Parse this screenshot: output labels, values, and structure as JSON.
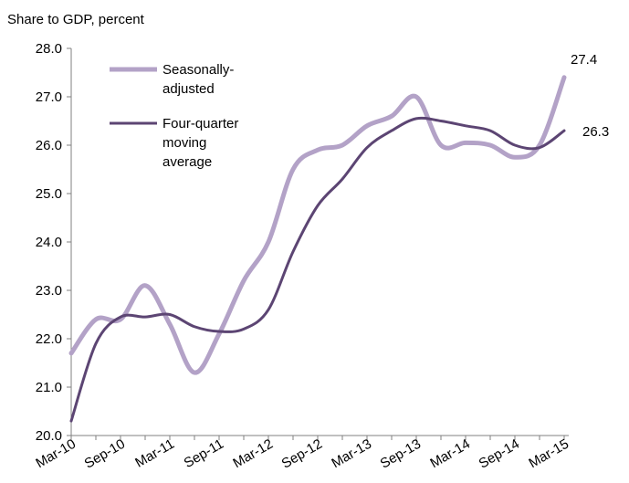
{
  "chart_data": {
    "type": "line",
    "ylabel": "Share to GDP, percent",
    "ylim": [
      20.0,
      28.0
    ],
    "y_ticks": [
      "20.0",
      "21.0",
      "22.0",
      "23.0",
      "24.0",
      "25.0",
      "26.0",
      "27.0",
      "28.0"
    ],
    "categories": [
      "Mar-10",
      "Jun-10",
      "Sep-10",
      "Dec-10",
      "Mar-11",
      "Jun-11",
      "Sep-11",
      "Dec-11",
      "Mar-12",
      "Jun-12",
      "Sep-12",
      "Dec-12",
      "Mar-13",
      "Jun-13",
      "Sep-13",
      "Dec-13",
      "Mar-14",
      "Jun-14",
      "Sep-14",
      "Dec-14",
      "Mar-15"
    ],
    "x_tick_labels": [
      "Mar-10",
      "Sep-10",
      "Mar-11",
      "Sep-11",
      "Mar-12",
      "Sep-12",
      "Mar-13",
      "Sep-13",
      "Mar-14",
      "Sep-14",
      "Mar-15"
    ],
    "series": [
      {
        "name": "Seasonally-adjusted",
        "color": "#b3a2c7",
        "values": [
          21.7,
          22.4,
          22.4,
          23.1,
          22.3,
          21.3,
          22.1,
          23.2,
          24.0,
          25.5,
          25.9,
          26.0,
          26.4,
          26.6,
          27.0,
          26.0,
          26.05,
          26.0,
          25.75,
          26.0,
          27.4
        ]
      },
      {
        "name": "Four-quarter moving average",
        "color": "#5c4573",
        "values": [
          20.3,
          21.9,
          22.45,
          22.45,
          22.5,
          22.25,
          22.15,
          22.2,
          22.6,
          23.8,
          24.75,
          25.3,
          25.95,
          26.3,
          26.55,
          26.5,
          26.4,
          26.3,
          26.0,
          25.95,
          26.3
        ]
      }
    ],
    "end_labels": [
      {
        "series": 0,
        "text": "27.4"
      },
      {
        "series": 1,
        "text": "26.3"
      }
    ],
    "legend": {
      "placement": "top-left",
      "items": [
        {
          "series": 0,
          "lines": [
            "Seasonally-",
            "adjusted"
          ]
        },
        {
          "series": 1,
          "lines": [
            "Four-quarter",
            "moving",
            "average"
          ]
        }
      ]
    },
    "grid": false
  }
}
